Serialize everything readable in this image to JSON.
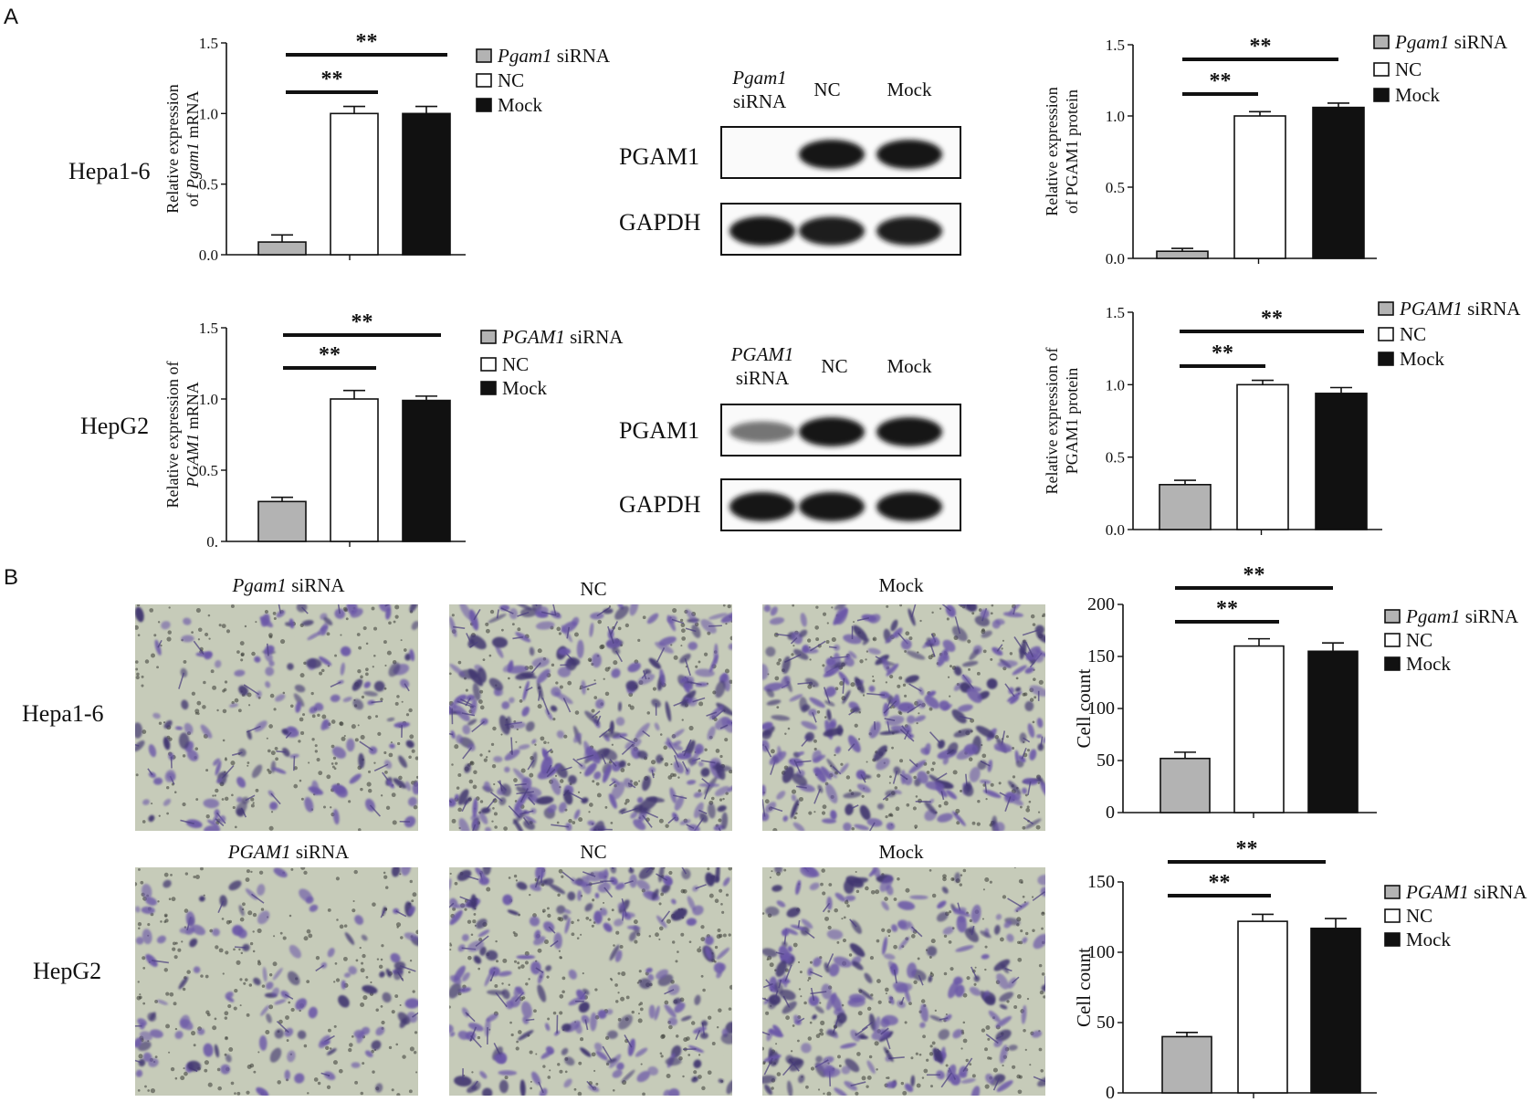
{
  "panel_labels": {
    "a": "A",
    "b": "B"
  },
  "row_labels": {
    "a_hepa": "Hepa1-6",
    "a_hepg2": "HepG2",
    "b_hepa": "Hepa1-6",
    "b_hepg2": "HepG2"
  },
  "colors": {
    "sirna": "#b3b3b3",
    "nc": "#ffffff",
    "mock": "#111111",
    "stain_purple": "#6a56a8",
    "membrane_bg": "#c7ccb8",
    "band": "#161616"
  },
  "chart_data": [
    {
      "id": "a_hepa_mrna",
      "type": "bar",
      "categories": [
        "Pgam1 siRNA",
        "NC",
        "Mock"
      ],
      "values": [
        0.09,
        1.0,
        1.0
      ],
      "errors": [
        0.05,
        0.05,
        0.05
      ],
      "ylim": [
        0,
        1.5
      ],
      "yticks": [
        "0.0",
        "0.5",
        "1.0",
        "1.5"
      ],
      "ytick_values": [
        0,
        0.5,
        1.0,
        1.5
      ],
      "ylabel": [
        "Relative expression",
        "of Pgam1 mRNA"
      ],
      "ylabel_italic_word": "Pgam1",
      "legend": [
        {
          "name": "Pgam1",
          "suffix": " siRNA",
          "italic": true
        },
        {
          "name": "NC",
          "suffix": "",
          "italic": false
        },
        {
          "name": "Mock",
          "suffix": "",
          "italic": false
        }
      ],
      "significance": [
        "**",
        "**"
      ]
    },
    {
      "id": "a_hepa_protein",
      "type": "bar",
      "categories": [
        "Pgam1 siRNA",
        "NC",
        "Mock"
      ],
      "values": [
        0.05,
        1.0,
        1.06
      ],
      "errors": [
        0.02,
        0.03,
        0.03
      ],
      "ylim": [
        0,
        1.5
      ],
      "yticks": [
        "0.0",
        "0.5",
        "1.0",
        "1.5"
      ],
      "ytick_values": [
        0,
        0.5,
        1.0,
        1.5
      ],
      "ylabel": [
        "Relative expression",
        "of PGAM1 protein"
      ],
      "legend": [
        {
          "name": "Pgam1",
          "suffix": " siRNA",
          "italic": true
        },
        {
          "name": "NC",
          "suffix": "",
          "italic": false
        },
        {
          "name": "Mock",
          "suffix": "",
          "italic": false
        }
      ],
      "significance": [
        "**",
        "**"
      ]
    },
    {
      "id": "a_hepg2_mrna",
      "type": "bar",
      "categories": [
        "PGAM1 siRNA",
        "NC",
        "Mock"
      ],
      "values": [
        0.28,
        1.0,
        0.99
      ],
      "errors": [
        0.03,
        0.06,
        0.03
      ],
      "ylim": [
        0,
        1.5
      ],
      "yticks": [
        "0.",
        "0.5",
        "1.0",
        "1.5"
      ],
      "ytick_values": [
        0,
        0.5,
        1.0,
        1.5
      ],
      "ylabel": [
        "Relative expression of",
        "PGAM1 mRNA"
      ],
      "ylabel_italic_word": "PGAM1",
      "legend": [
        {
          "name": "PGAM1",
          "suffix": " siRNA",
          "italic": true
        },
        {
          "name": "NC",
          "suffix": "",
          "italic": false
        },
        {
          "name": "Mock",
          "suffix": "",
          "italic": false
        }
      ],
      "significance": [
        "**",
        "**"
      ]
    },
    {
      "id": "a_hepg2_protein",
      "type": "bar",
      "categories": [
        "PGAM1 siRNA",
        "NC",
        "Mock"
      ],
      "values": [
        0.31,
        1.0,
        0.94
      ],
      "errors": [
        0.03,
        0.03,
        0.04
      ],
      "ylim": [
        0,
        1.5
      ],
      "yticks": [
        "0.0",
        "0.5",
        "1.0",
        "1.5"
      ],
      "ytick_values": [
        0,
        0.5,
        1.0,
        1.5
      ],
      "ylabel": [
        "Relative expression of",
        "PGAM1 protein"
      ],
      "legend": [
        {
          "name": "PGAM1",
          "suffix": " siRNA",
          "italic": true
        },
        {
          "name": "NC",
          "suffix": "",
          "italic": false
        },
        {
          "name": "Mock",
          "suffix": "",
          "italic": false
        }
      ],
      "significance": [
        "**",
        "**"
      ]
    },
    {
      "id": "b_hepa_count",
      "type": "bar",
      "categories": [
        "Pgam1 siRNA",
        "NC",
        "Mock"
      ],
      "values": [
        52,
        160,
        155
      ],
      "errors": [
        6,
        7,
        8
      ],
      "ylim": [
        0,
        200
      ],
      "yticks": [
        "0",
        "50",
        "100",
        "150",
        "200"
      ],
      "ytick_values": [
        0,
        50,
        100,
        150,
        200
      ],
      "ylabel": [
        "Cell count"
      ],
      "legend": [
        {
          "name": "Pgam1",
          "suffix": " siRNA",
          "italic": true
        },
        {
          "name": "NC",
          "suffix": "",
          "italic": false
        },
        {
          "name": "Mock",
          "suffix": "",
          "italic": false
        }
      ],
      "significance": [
        "**",
        "**"
      ]
    },
    {
      "id": "b_hepg2_count",
      "type": "bar",
      "categories": [
        "PGAM1 siRNA",
        "NC",
        "Mock"
      ],
      "values": [
        40,
        122,
        117
      ],
      "errors": [
        3,
        5,
        7
      ],
      "ylim": [
        0,
        150
      ],
      "yticks": [
        "0",
        "50",
        "100",
        "150"
      ],
      "ytick_values": [
        0,
        50,
        100,
        150
      ],
      "ylabel": [
        "Cell count"
      ],
      "legend": [
        {
          "name": "PGAM1",
          "suffix": " siRNA",
          "italic": true
        },
        {
          "name": "NC",
          "suffix": "",
          "italic": false
        },
        {
          "name": "Mock",
          "suffix": "",
          "italic": false
        }
      ],
      "significance": [
        "**",
        "**"
      ]
    }
  ],
  "blots": [
    {
      "id": "blot_hepa",
      "lanes": [
        {
          "line1": "Pgam1",
          "line2": "siRNA",
          "italic1": true
        },
        {
          "line1": "NC",
          "line2": ""
        },
        {
          "line1": "Mock",
          "line2": ""
        }
      ],
      "rows": [
        {
          "label": "PGAM1",
          "intensity": [
            0.0,
            1.0,
            1.0
          ]
        },
        {
          "label": "GAPDH",
          "intensity": [
            1.0,
            0.95,
            0.95
          ]
        }
      ]
    },
    {
      "id": "blot_hepg2",
      "lanes": [
        {
          "line1": "PGAM1",
          "line2": "siRNA",
          "italic1": true
        },
        {
          "line1": "NC",
          "line2": ""
        },
        {
          "line1": "Mock",
          "line2": ""
        }
      ],
      "rows": [
        {
          "label": "PGAM1",
          "intensity": [
            0.35,
            1.0,
            1.0
          ]
        },
        {
          "label": "GAPDH",
          "intensity": [
            1.0,
            1.0,
            1.0
          ]
        }
      ]
    }
  ],
  "micrographs": [
    {
      "id": "m_hepa_sirna",
      "title": "Pgam1",
      "title_suffix": " siRNA",
      "italic": true,
      "density": 0.45
    },
    {
      "id": "m_hepa_nc",
      "title": "NC",
      "title_suffix": "",
      "italic": false,
      "density": 1.0
    },
    {
      "id": "m_hepa_mock",
      "title": "Mock",
      "title_suffix": "",
      "italic": false,
      "density": 0.95
    },
    {
      "id": "m_hepg2_sirna",
      "title": "PGAM1",
      "title_suffix": " siRNA",
      "italic": true,
      "density": 0.35
    },
    {
      "id": "m_hepg2_nc",
      "title": "NC",
      "title_suffix": "",
      "italic": false,
      "density": 0.7
    },
    {
      "id": "m_hepg2_mock",
      "title": "Mock",
      "title_suffix": "",
      "italic": false,
      "density": 0.72
    }
  ]
}
